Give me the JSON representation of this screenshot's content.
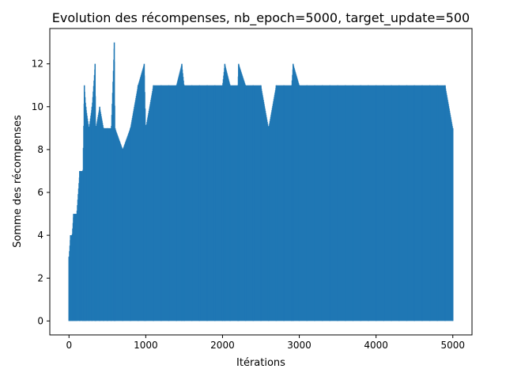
{
  "chart_data": {
    "type": "line",
    "title": "Evolution des récompenses, nb_epoch=5000, target_update=500",
    "xlabel": "Itérations",
    "ylabel": "Somme des récompenses",
    "xlim": [
      -250,
      5250
    ],
    "ylim": [
      -0.65,
      13.65
    ],
    "xticks": [
      0,
      1000,
      2000,
      3000,
      4000,
      5000
    ],
    "yticks": [
      0,
      2,
      4,
      6,
      8,
      10,
      12
    ],
    "grid": false,
    "legend": null,
    "colors": {
      "line": "#1f77b4"
    },
    "series": [
      {
        "x": [
          0,
          20,
          40,
          60,
          80,
          100,
          140,
          180,
          200,
          220,
          260,
          300,
          340,
          350,
          400,
          450,
          500,
          550,
          590,
          600,
          700,
          800,
          900,
          980,
          1000,
          1100,
          1200,
          1300,
          1400,
          1470,
          1500,
          1600,
          1700,
          1800,
          1900,
          2000,
          2030,
          2100,
          2200,
          2210,
          2300,
          2400,
          2500,
          2600,
          2700,
          2800,
          2900,
          2920,
          3000,
          3100,
          3200,
          3300,
          3400,
          3500,
          3600,
          3700,
          3800,
          3900,
          4000,
          4100,
          4200,
          4300,
          4400,
          4500,
          4600,
          4700,
          4800,
          4900,
          5000
        ],
        "y": [
          3,
          4,
          4,
          5,
          5,
          5,
          7,
          7,
          11,
          10,
          9,
          10,
          12,
          9,
          10,
          9,
          9,
          9,
          13,
          9,
          8,
          9,
          11,
          12,
          9,
          11,
          11,
          11,
          11,
          12,
          11,
          11,
          11,
          11,
          11,
          11,
          12,
          11,
          11,
          12,
          11,
          11,
          11,
          9,
          11,
          11,
          11,
          12,
          11,
          11,
          11,
          11,
          11,
          11,
          11,
          11,
          11,
          11,
          11,
          11,
          11,
          11,
          11,
          11,
          11,
          11,
          11,
          11,
          9
        ]
      }
    ]
  }
}
